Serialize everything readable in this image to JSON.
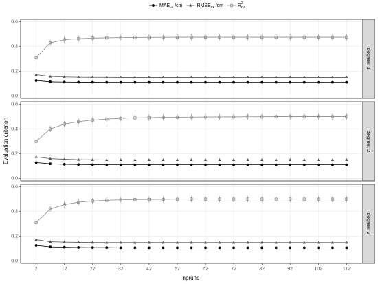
{
  "chart_data": {
    "type": "line",
    "xlabel": "nprune",
    "ylabel": "Evaluation criterion",
    "grid": true,
    "legend": "top",
    "x": [
      2,
      7,
      12,
      17,
      22,
      27,
      32,
      37,
      42,
      47,
      52,
      57,
      62,
      67,
      72,
      77,
      82,
      87,
      92,
      97,
      102,
      107,
      112
    ],
    "xlim": [
      -3.5,
      117.5
    ],
    "xticks": [
      2,
      12,
      22,
      32,
      42,
      52,
      62,
      72,
      82,
      92,
      102,
      112
    ],
    "ylim": [
      -0.02,
      0.62
    ],
    "yticks": [
      {
        "value": 0,
        "label": "0.0"
      },
      {
        "value": 0.2,
        "label": "0.2"
      },
      {
        "value": 0.4,
        "label": "0.4"
      },
      {
        "value": 0.6,
        "label": "0.6"
      }
    ],
    "series": [
      {
        "name": "MAE",
        "sub": "cv",
        "unit": "/cm",
        "color": "#000000",
        "marker": "circle"
      },
      {
        "name": "RMSE",
        "sub": "cv",
        "unit": "/cm",
        "color": "#555555",
        "marker": "triangle"
      },
      {
        "name": "R",
        "sup": "2",
        "sub": "cv",
        "color": "#8c8c8c",
        "marker": "square"
      }
    ],
    "panels": [
      {
        "label": "degree: 1",
        "series": [
          {
            "values": [
              0.125,
              0.114,
              0.112,
              0.111,
              0.111,
              0.11,
              0.11,
              0.11,
              0.11,
              0.11,
              0.11,
              0.11,
              0.11,
              0.11,
              0.11,
              0.11,
              0.11,
              0.11,
              0.11,
              0.11,
              0.11,
              0.11,
              0.11
            ]
          },
          {
            "values": [
              0.172,
              0.158,
              0.154,
              0.152,
              0.151,
              0.151,
              0.15,
              0.15,
              0.15,
              0.15,
              0.15,
              0.15,
              0.15,
              0.15,
              0.15,
              0.15,
              0.15,
              0.15,
              0.15,
              0.15,
              0.15,
              0.15,
              0.15
            ]
          },
          {
            "values": [
              0.31,
              0.43,
              0.455,
              0.463,
              0.468,
              0.47,
              0.472,
              0.473,
              0.474,
              0.474,
              0.475,
              0.475,
              0.475,
              0.475,
              0.475,
              0.475,
              0.475,
              0.475,
              0.475,
              0.475,
              0.475,
              0.475,
              0.475
            ],
            "errors": [
              0.025,
              0.025,
              0.025,
              0.025,
              0.025,
              0.025,
              0.025,
              0.025,
              0.025,
              0.025,
              0.025,
              0.025,
              0.025,
              0.025,
              0.025,
              0.025,
              0.025,
              0.025,
              0.025,
              0.025,
              0.025,
              0.025,
              0.025
            ]
          }
        ]
      },
      {
        "label": "degree: 2",
        "series": [
          {
            "values": [
              0.128,
              0.118,
              0.114,
              0.112,
              0.111,
              0.11,
              0.11,
              0.11,
              0.11,
              0.11,
              0.11,
              0.11,
              0.11,
              0.11,
              0.11,
              0.11,
              0.11,
              0.11,
              0.11,
              0.11,
              0.11,
              0.11,
              0.11
            ]
          },
          {
            "values": [
              0.175,
              0.16,
              0.155,
              0.152,
              0.151,
              0.15,
              0.15,
              0.15,
              0.15,
              0.15,
              0.15,
              0.15,
              0.15,
              0.15,
              0.15,
              0.15,
              0.15,
              0.15,
              0.15,
              0.15,
              0.15,
              0.15,
              0.15
            ]
          },
          {
            "values": [
              0.3,
              0.4,
              0.44,
              0.46,
              0.472,
              0.48,
              0.486,
              0.49,
              0.492,
              0.494,
              0.495,
              0.496,
              0.497,
              0.498,
              0.498,
              0.499,
              0.499,
              0.5,
              0.5,
              0.5,
              0.5,
              0.5,
              0.5
            ],
            "errors": [
              0.025,
              0.025,
              0.025,
              0.025,
              0.025,
              0.025,
              0.025,
              0.025,
              0.025,
              0.025,
              0.025,
              0.025,
              0.025,
              0.025,
              0.025,
              0.025,
              0.025,
              0.025,
              0.025,
              0.025,
              0.025,
              0.025,
              0.025
            ]
          }
        ]
      },
      {
        "label": "degree: 3",
        "series": [
          {
            "values": [
              0.125,
              0.113,
              0.11,
              0.108,
              0.107,
              0.107,
              0.106,
              0.106,
              0.106,
              0.106,
              0.106,
              0.106,
              0.106,
              0.106,
              0.106,
              0.106,
              0.106,
              0.106,
              0.106,
              0.106,
              0.106,
              0.106,
              0.106
            ]
          },
          {
            "values": [
              0.172,
              0.155,
              0.152,
              0.15,
              0.149,
              0.148,
              0.148,
              0.148,
              0.148,
              0.148,
              0.148,
              0.148,
              0.148,
              0.148,
              0.148,
              0.148,
              0.148,
              0.148,
              0.148,
              0.148,
              0.148,
              0.148,
              0.148
            ]
          },
          {
            "values": [
              0.31,
              0.42,
              0.455,
              0.475,
              0.485,
              0.49,
              0.494,
              0.496,
              0.497,
              0.498,
              0.499,
              0.5,
              0.5,
              0.5,
              0.5,
              0.5,
              0.5,
              0.5,
              0.5,
              0.5,
              0.5,
              0.5,
              0.5
            ],
            "errors": [
              0.025,
              0.025,
              0.025,
              0.025,
              0.025,
              0.025,
              0.025,
              0.025,
              0.025,
              0.025,
              0.025,
              0.025,
              0.025,
              0.025,
              0.025,
              0.025,
              0.025,
              0.025,
              0.025,
              0.025,
              0.025,
              0.025,
              0.025
            ]
          }
        ]
      }
    ]
  }
}
